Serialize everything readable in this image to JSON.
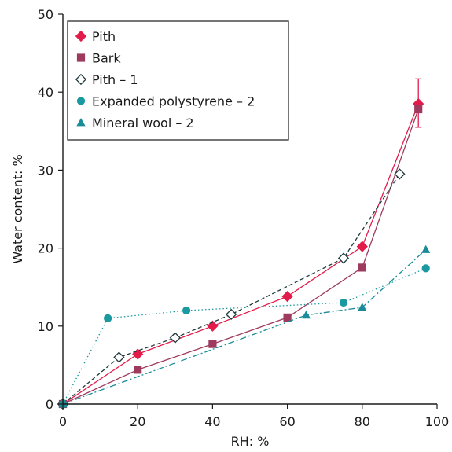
{
  "chart_data": {
    "type": "line",
    "xlabel": "RH: %",
    "ylabel": "Water content: %",
    "xlim": [
      0,
      100
    ],
    "ylim": [
      0,
      50
    ],
    "xticks": [
      0,
      20,
      40,
      60,
      80,
      100
    ],
    "yticks": [
      0,
      10,
      20,
      30,
      40,
      50
    ],
    "grid": false,
    "legend_position": "top-left",
    "series": [
      {
        "name": "Pith",
        "marker": "diamond",
        "marker_fill": "filled",
        "line_style": "solid",
        "color": "#e31b4a",
        "x": [
          0,
          20,
          40,
          60,
          80,
          95
        ],
        "y": [
          0,
          6.4,
          10,
          13.8,
          20.2,
          38.5
        ],
        "error_bar": {
          "x": 95,
          "low": 35.5,
          "high": 41.7
        }
      },
      {
        "name": "Bark",
        "marker": "square",
        "marker_fill": "filled",
        "line_style": "solid",
        "color": "#9e3a5e",
        "x": [
          0,
          20,
          40,
          60,
          80,
          95
        ],
        "y": [
          0,
          4.4,
          7.7,
          11.1,
          17.5,
          37.8
        ]
      },
      {
        "name": "Pith – 1",
        "marker": "diamond",
        "marker_fill": "open",
        "line_style": "dashed",
        "color": "#1f3a3d",
        "x": [
          0,
          15,
          30,
          45,
          75,
          90
        ],
        "y": [
          0,
          6,
          8.5,
          11.5,
          18.7,
          29.5
        ]
      },
      {
        "name": "Expanded polystyrene – 2",
        "marker": "circle",
        "marker_fill": "filled",
        "line_style": "dotted",
        "color": "#1a9aa0",
        "x": [
          0,
          12,
          33,
          75,
          97
        ],
        "y": [
          0,
          11,
          12,
          13,
          17.4
        ]
      },
      {
        "name": "Mineral wool – 2",
        "marker": "triangle",
        "marker_fill": "filled",
        "line_style": "dashdot",
        "color": "#1a8c99",
        "x": [
          0,
          65,
          80,
          97
        ],
        "y": [
          0,
          11.4,
          12.4,
          19.8
        ]
      }
    ]
  }
}
